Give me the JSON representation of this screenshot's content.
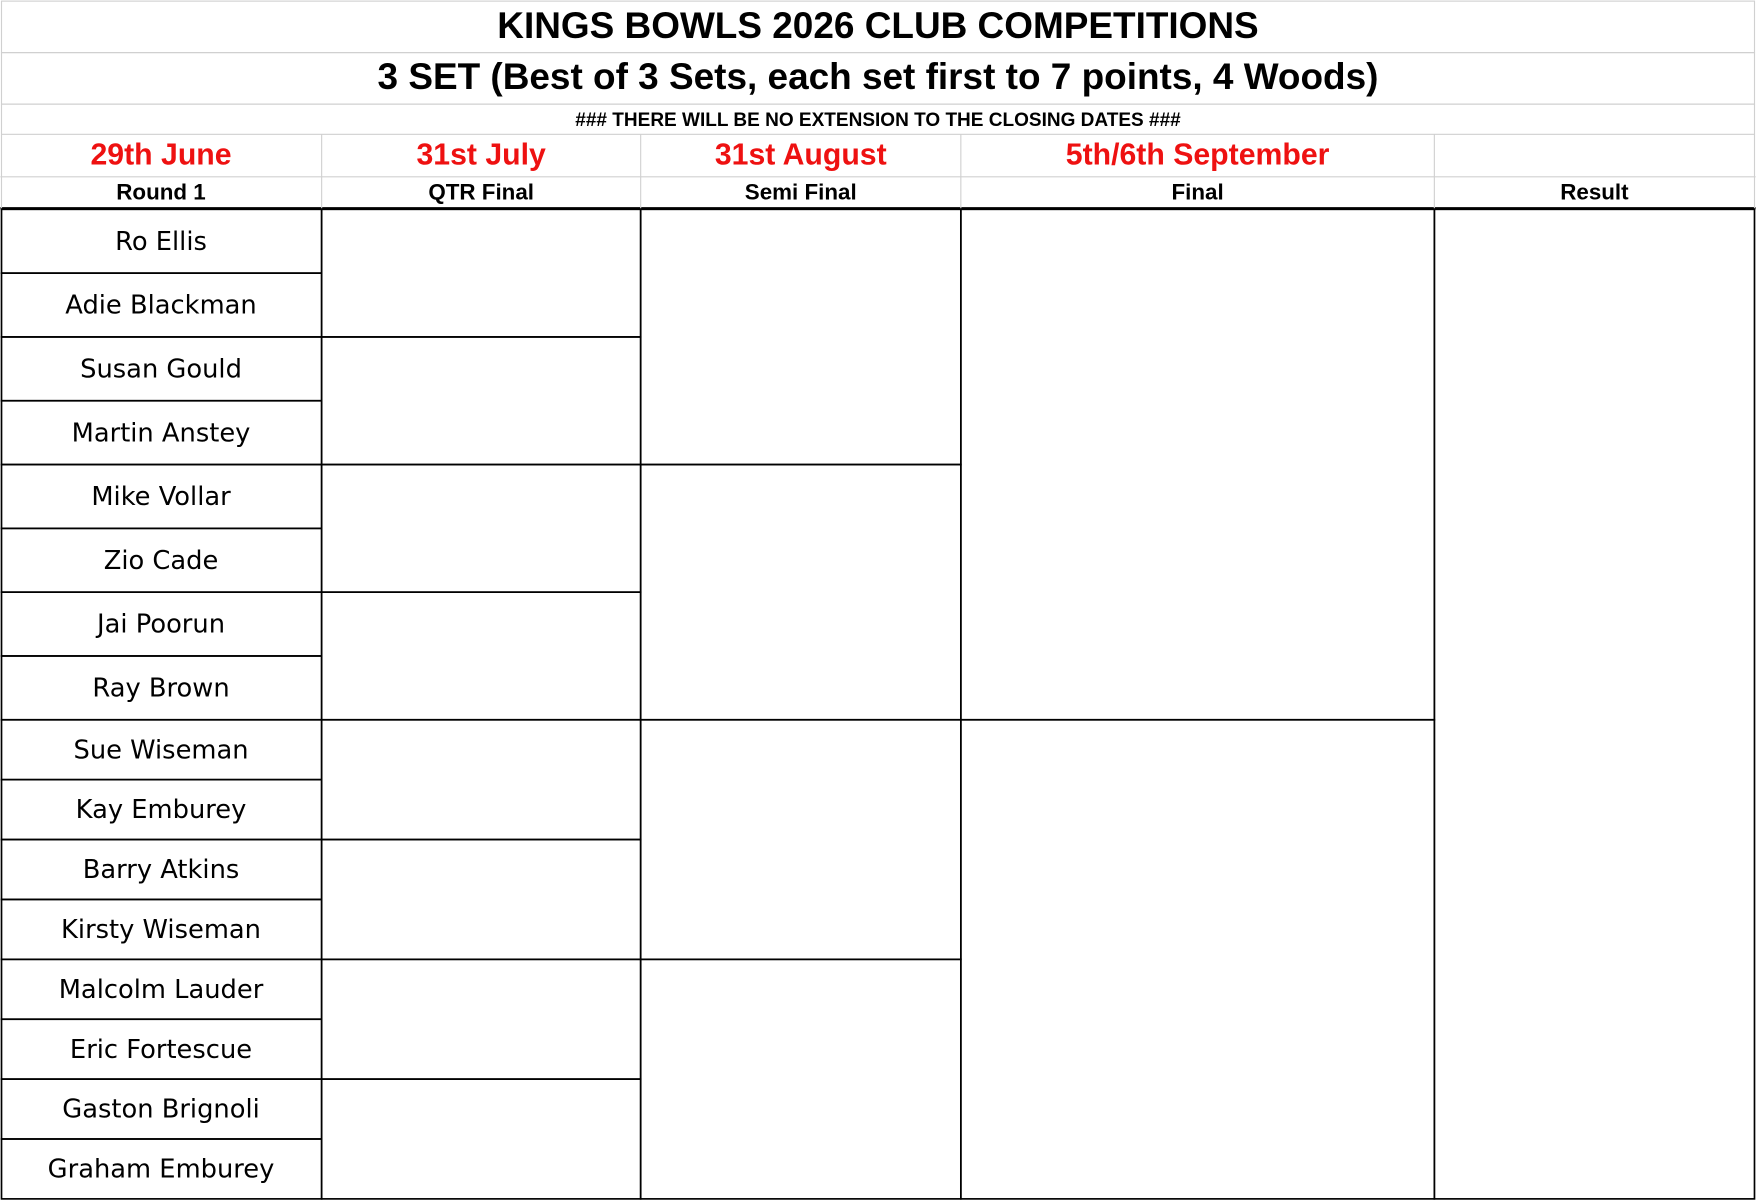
{
  "header": {
    "title": "KINGS BOWLS 2026 CLUB COMPETITIONS",
    "subtitle": "3 SET (Best of 3 Sets, each set first to 7 points, 4 Woods)",
    "notice": "###  THERE WILL BE NO EXTENSION TO THE CLOSING DATES  ###"
  },
  "dates": [
    "29th June",
    "31st July",
    "31st August",
    "5th/6th September"
  ],
  "rounds": [
    "Round 1",
    "QTR Final",
    "Semi Final",
    "Final",
    "Result"
  ],
  "players": [
    "Ro Ellis",
    "Adie Blackman",
    "Susan Gould",
    "Martin Anstey",
    "Mike Vollar",
    "Zio Cade",
    "Jai Poorun",
    "Ray Brown",
    "Sue Wiseman",
    "Kay Emburey",
    "Barry Atkins",
    "Kirsty Wiseman",
    "Malcolm Lauder",
    "Eric Fortescue",
    "Gaston Brignoli",
    "Graham Emburey"
  ]
}
